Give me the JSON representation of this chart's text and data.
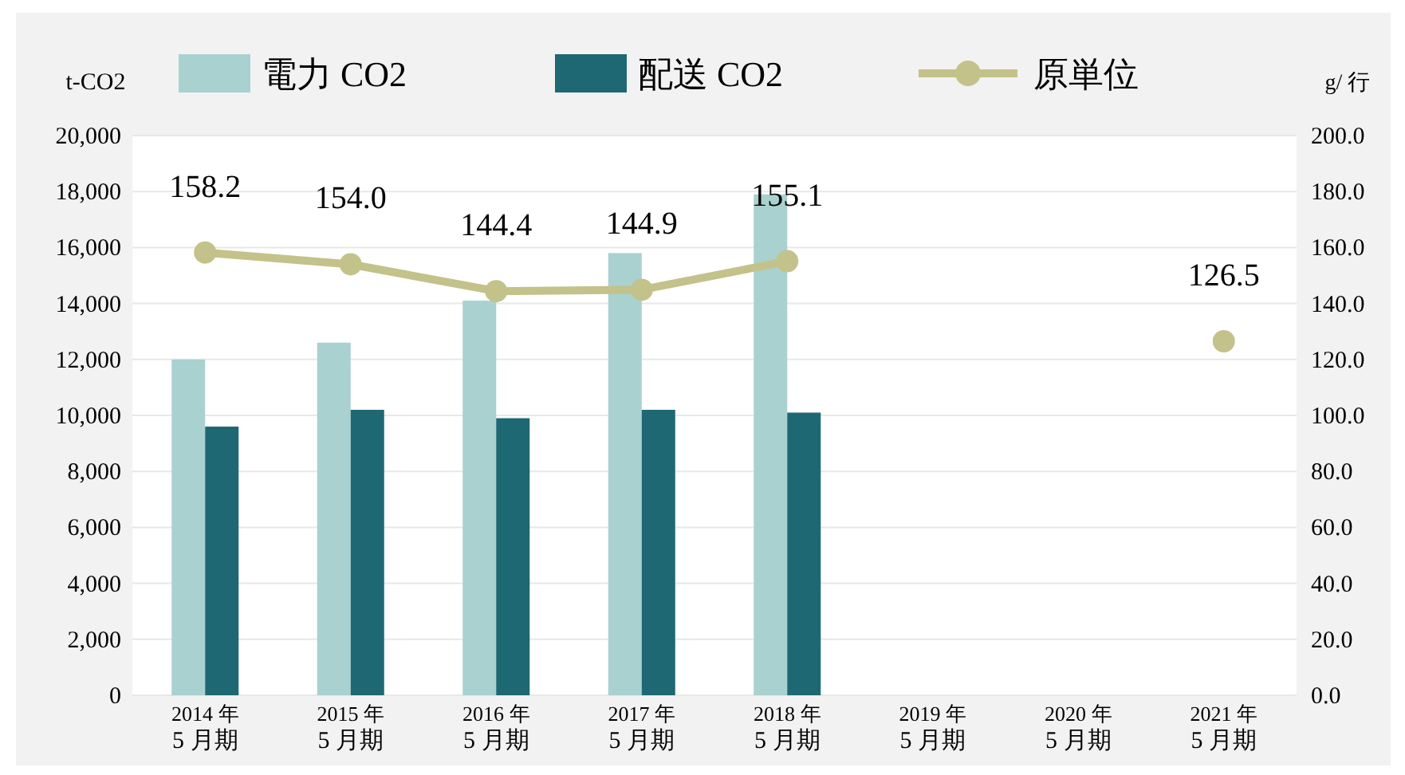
{
  "chart_data": {
    "type": "bar",
    "ylabel": "t-CO2",
    "y2label": "g/ 行",
    "categories": [
      "2014 年\n5 月期",
      "2015 年\n5 月期",
      "2016 年\n5 月期",
      "2017 年\n5 月期",
      "2018 年\n5 月期",
      "2019 年\n5 月期",
      "2020 年\n5 月期",
      "2021 年\n5 月期"
    ],
    "series": [
      {
        "name": "電力 CO2",
        "color": "#a9d1d0",
        "values": [
          12000,
          12600,
          14100,
          15800,
          17900,
          null,
          null,
          null
        ]
      },
      {
        "name": "配送 CO2",
        "color": "#1e6874",
        "values": [
          9600,
          10200,
          9900,
          10200,
          10100,
          null,
          null,
          null
        ]
      },
      {
        "name": "原単位",
        "type": "line",
        "axis": "y2",
        "color": "#c2c28a",
        "marker": "circle",
        "values": [
          158.2,
          154.0,
          144.4,
          144.9,
          155.1,
          null,
          null,
          126.5
        ],
        "value_labels": [
          "158.2",
          "154.0",
          "144.4",
          "144.9",
          "155.1",
          null,
          null,
          "126.5"
        ]
      }
    ],
    "ylim": [
      0,
      20000
    ],
    "yticks": [
      0,
      {
        "value": 2000,
        "label": "2,000"
      },
      {
        "value": 4000,
        "label": "4,000"
      },
      {
        "value": 6000,
        "label": "6,000"
      },
      {
        "value": 8000,
        "label": "8,000"
      },
      {
        "value": 10000,
        "label": "10,000"
      },
      {
        "value": 12000,
        "label": "12,000"
      },
      {
        "value": 14000,
        "label": "14,000"
      },
      {
        "value": 16000,
        "label": "16,000"
      },
      {
        "value": 18000,
        "label": "18,000"
      },
      {
        "value": 20000,
        "label": "20,000"
      }
    ],
    "y2lim": [
      0,
      200
    ],
    "y2ticks": [
      {
        "value": 0,
        "label": "0.0"
      },
      {
        "value": 20,
        "label": "20.0"
      },
      {
        "value": 40,
        "label": "40.0"
      },
      {
        "value": 60,
        "label": "60.0"
      },
      {
        "value": 80,
        "label": "80.0"
      },
      {
        "value": 100,
        "label": "100.0"
      },
      {
        "value": 120,
        "label": "120.0"
      },
      {
        "value": 140,
        "label": "140.0"
      },
      {
        "value": 160,
        "label": "160.0"
      },
      {
        "value": 180,
        "label": "180.0"
      },
      {
        "value": 200,
        "label": "200.0"
      }
    ],
    "grid": "y",
    "legend": "top"
  }
}
